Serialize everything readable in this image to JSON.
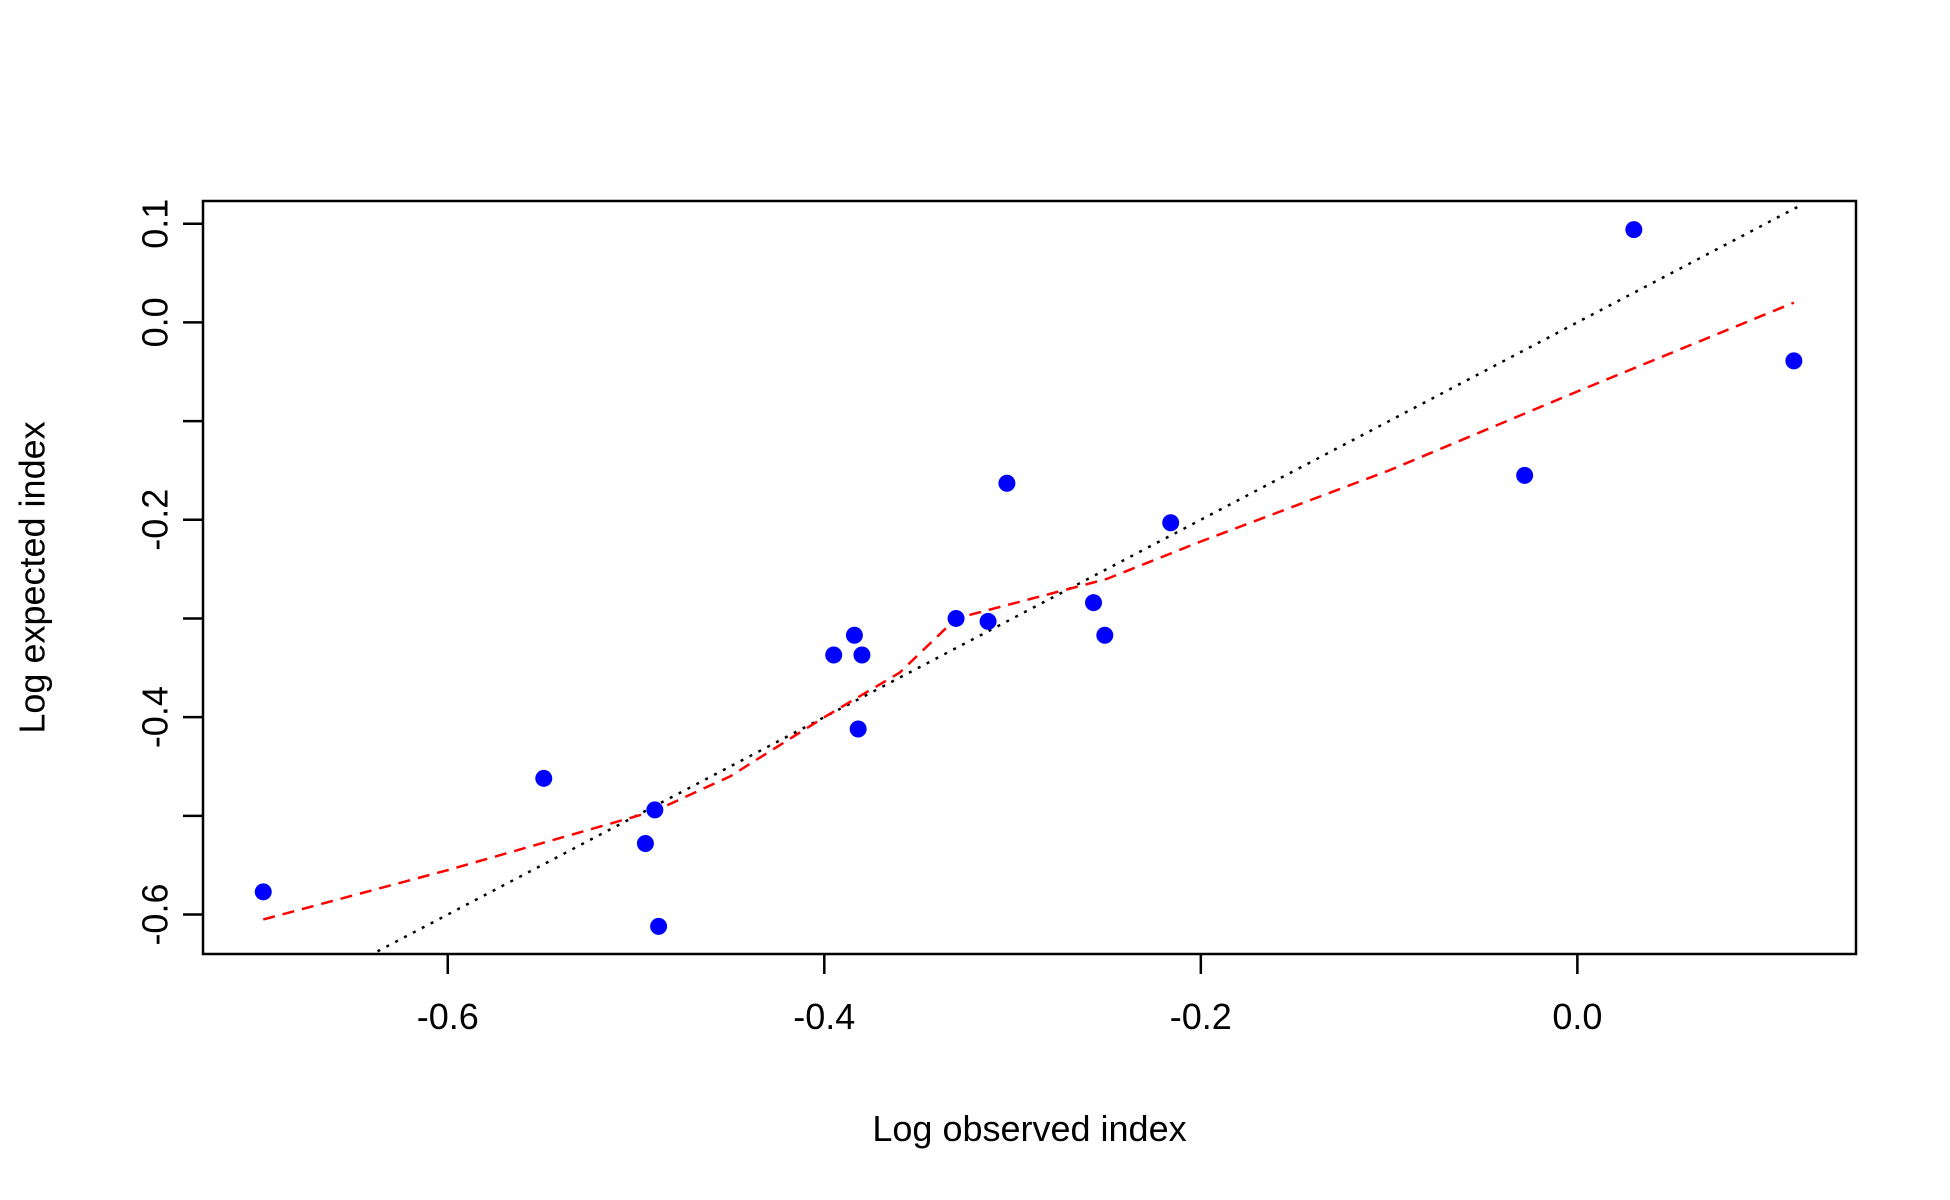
{
  "chart_data": {
    "type": "scatter",
    "xlabel": "Log observed index",
    "ylabel": "Log expected index",
    "xlim": [
      -0.73,
      0.148
    ],
    "ylim": [
      -0.64,
      0.123
    ],
    "x_ticks": [
      -0.6,
      -0.4,
      -0.2,
      0.0
    ],
    "x_tick_labels": [
      "-0.6",
      "-0.4",
      "-0.2",
      "0.0"
    ],
    "y_ticks": [
      -0.6,
      -0.5,
      -0.4,
      -0.3,
      -0.2,
      -0.1,
      0.0,
      0.1
    ],
    "y_tick_labels": [
      "-0.6",
      "",
      "-0.4",
      "",
      "-0.2",
      "",
      "0.0",
      "0.1"
    ],
    "grid": false,
    "points": {
      "color": "#0000ff",
      "x": [
        -0.698,
        -0.549,
        -0.495,
        -0.49,
        -0.488,
        -0.395,
        -0.384,
        -0.382,
        -0.38,
        -0.33,
        -0.313,
        -0.303,
        -0.257,
        -0.251,
        -0.216,
        -0.028,
        0.03,
        0.115
      ],
      "y": [
        -0.577,
        -0.462,
        -0.528,
        -0.494,
        -0.612,
        -0.337,
        -0.317,
        -0.412,
        -0.337,
        -0.3,
        -0.303,
        -0.163,
        -0.284,
        -0.317,
        -0.203,
        -0.155,
        0.094,
        -0.039
      ]
    },
    "identity_line": {
      "color": "#000000",
      "style": "dotted",
      "x": [
        -0.642,
        0.118
      ],
      "y": [
        -0.642,
        0.118
      ]
    },
    "smooth_line": {
      "color": "#ff0000",
      "style": "dashed",
      "x": [
        -0.698,
        -0.6,
        -0.49,
        -0.45,
        -0.4,
        -0.36,
        -0.33,
        -0.3,
        -0.25,
        -0.2,
        -0.1,
        0.0,
        0.115
      ],
      "y": [
        -0.605,
        -0.555,
        -0.495,
        -0.46,
        -0.4,
        -0.355,
        -0.3,
        -0.285,
        -0.26,
        -0.222,
        -0.15,
        -0.07,
        0.02
      ]
    }
  }
}
